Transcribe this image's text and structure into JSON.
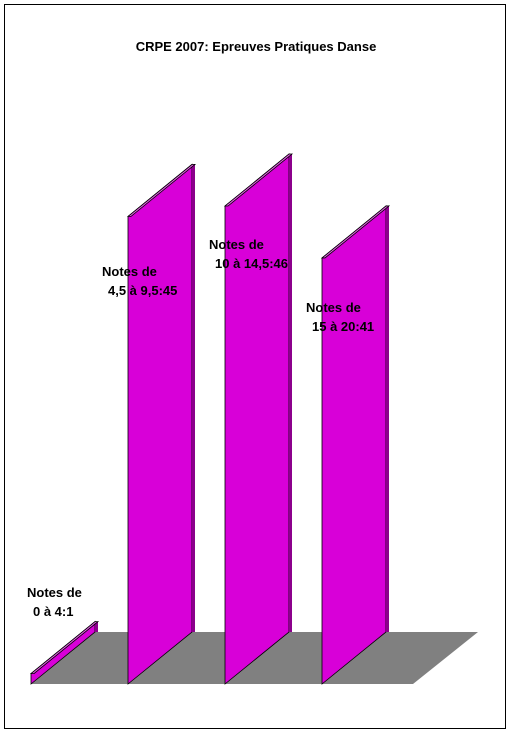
{
  "chart_data": {
    "type": "bar",
    "title": "CRPE 2007:  Epreuves Pratiques Danse",
    "categories": [
      "Notes de 0 à 4",
      "Notes de 4,5 à 9,5",
      "Notes de 10 à 14,5",
      "Notes de 15 à 20"
    ],
    "values": [
      1,
      45,
      46,
      41
    ],
    "data_labels": [
      [
        "Notes de",
        "0 à 4:1"
      ],
      [
        "Notes de",
        "4,5 à 9,5:45"
      ],
      [
        "Notes de",
        "10 à 14,5:46"
      ],
      [
        "Notes de",
        "15 à 20:41"
      ]
    ],
    "xlabel": "",
    "ylabel": "",
    "grid": false,
    "legend": "none",
    "three_d": true
  },
  "colors": {
    "bar_front": "#d800d8",
    "bar_top": "#e060e0",
    "bar_side": "#8c008c",
    "floor": "#808080",
    "background": "#ffffff"
  }
}
